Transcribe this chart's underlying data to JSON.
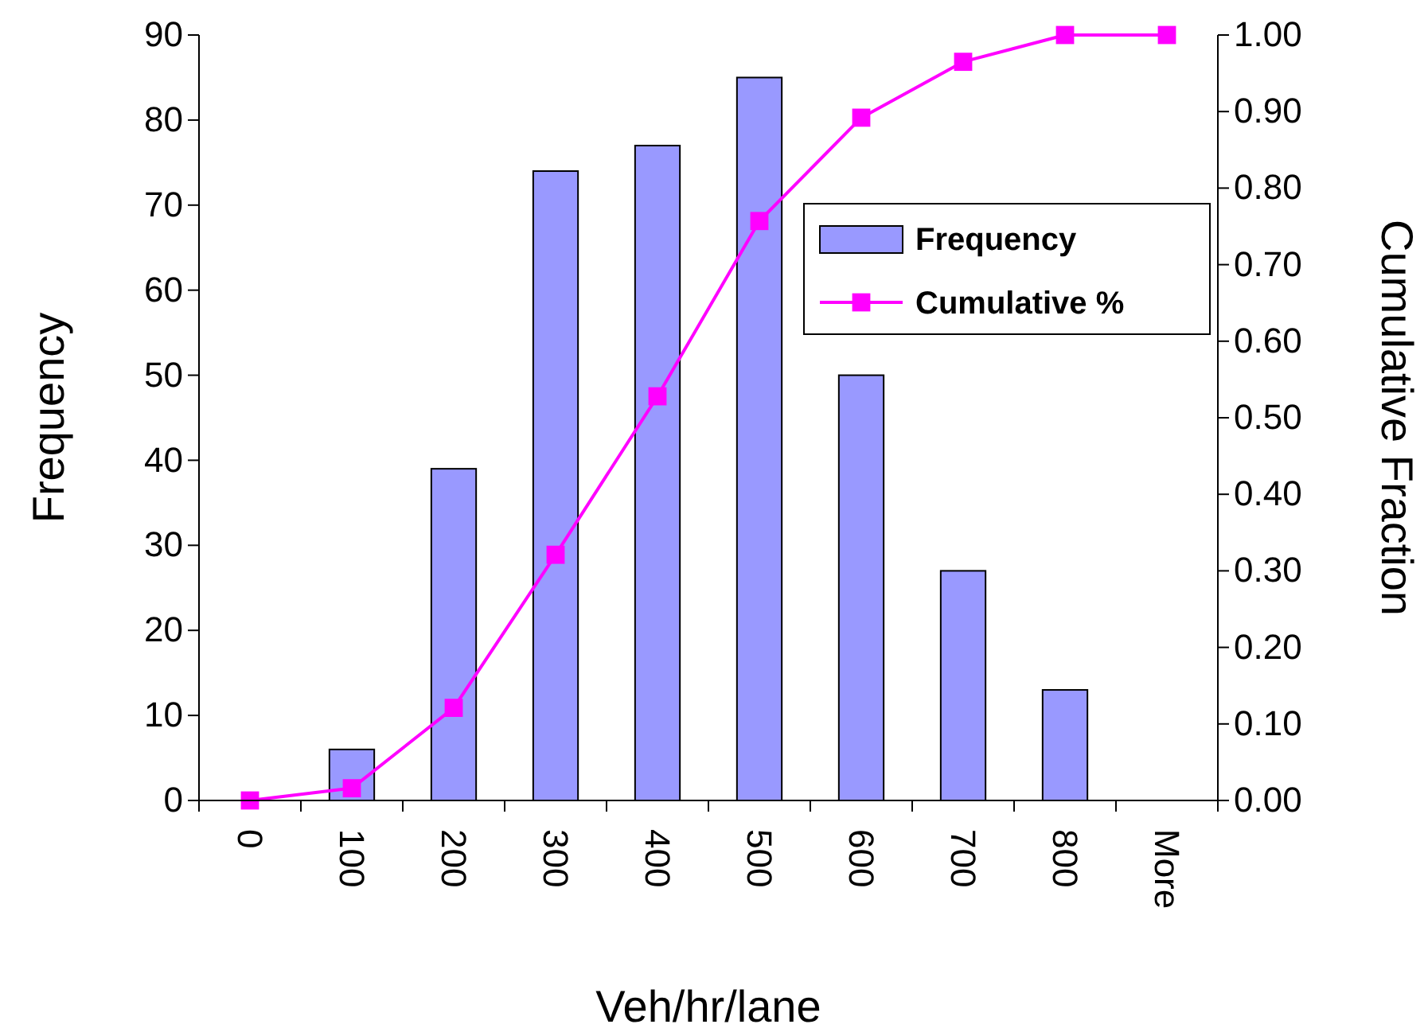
{
  "chart_data": {
    "type": "bar",
    "xlabel": "Veh/hr/lane",
    "ylabel": "Frequency",
    "y2label": "Cumulative Fraction",
    "categories": [
      "0",
      "100",
      "200",
      "300",
      "400",
      "500",
      "600",
      "700",
      "800",
      "More"
    ],
    "series": [
      {
        "name": "Frequency",
        "color": "#9999ff",
        "values": [
          0,
          6,
          39,
          74,
          77,
          85,
          50,
          27,
          13,
          0
        ]
      },
      {
        "name": "Cumulative %",
        "type": "line",
        "axis": "y2",
        "color": "#ff00ff",
        "marker": "square",
        "values": [
          0,
          0.016,
          0.121,
          0.321,
          0.528,
          0.757,
          0.892,
          0.965,
          1.0,
          1.0
        ]
      }
    ],
    "ylim": [
      0,
      90
    ],
    "yticks": [
      0,
      10,
      20,
      30,
      40,
      50,
      60,
      70,
      80,
      90
    ],
    "y2lim": [
      0,
      1
    ],
    "y2ticks": [
      {
        "value": 0,
        "label": "0.00"
      },
      {
        "value": 0.1,
        "label": "0.10"
      },
      {
        "value": 0.2,
        "label": "0.20"
      },
      {
        "value": 0.3,
        "label": "0.30"
      },
      {
        "value": 0.4,
        "label": "0.40"
      },
      {
        "value": 0.5,
        "label": "0.50"
      },
      {
        "value": 0.6,
        "label": "0.60"
      },
      {
        "value": 0.7,
        "label": "0.70"
      },
      {
        "value": 0.8,
        "label": "0.80"
      },
      {
        "value": 0.9,
        "label": "0.90"
      },
      {
        "value": 1,
        "label": "1.00"
      }
    ],
    "legend": "right",
    "grid": false
  }
}
